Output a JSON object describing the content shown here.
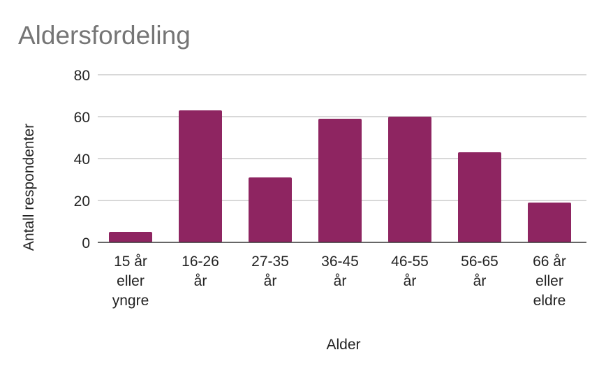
{
  "chart_data": {
    "type": "bar",
    "title": "Aldersfordeling",
    "xlabel": "Alder",
    "ylabel": "Antall respondenter",
    "categories": [
      [
        "15 år",
        "eller",
        "yngre"
      ],
      [
        "16-26",
        "år"
      ],
      [
        "27-35",
        "år"
      ],
      [
        "36-45",
        "år"
      ],
      [
        "46-55",
        "år"
      ],
      [
        "56-65",
        "år"
      ],
      [
        "66 år",
        "eller",
        "eldre"
      ]
    ],
    "values": [
      5,
      63,
      31,
      59,
      60,
      43,
      19
    ],
    "ylim": [
      0,
      80
    ],
    "yticks": [
      0,
      20,
      40,
      60,
      80
    ],
    "grid": true,
    "legend": "none",
    "colors": {
      "bar": "#8e2561",
      "grid": "#cccccc",
      "axis": "#333333",
      "text": "#222222",
      "title": "#757575"
    }
  }
}
